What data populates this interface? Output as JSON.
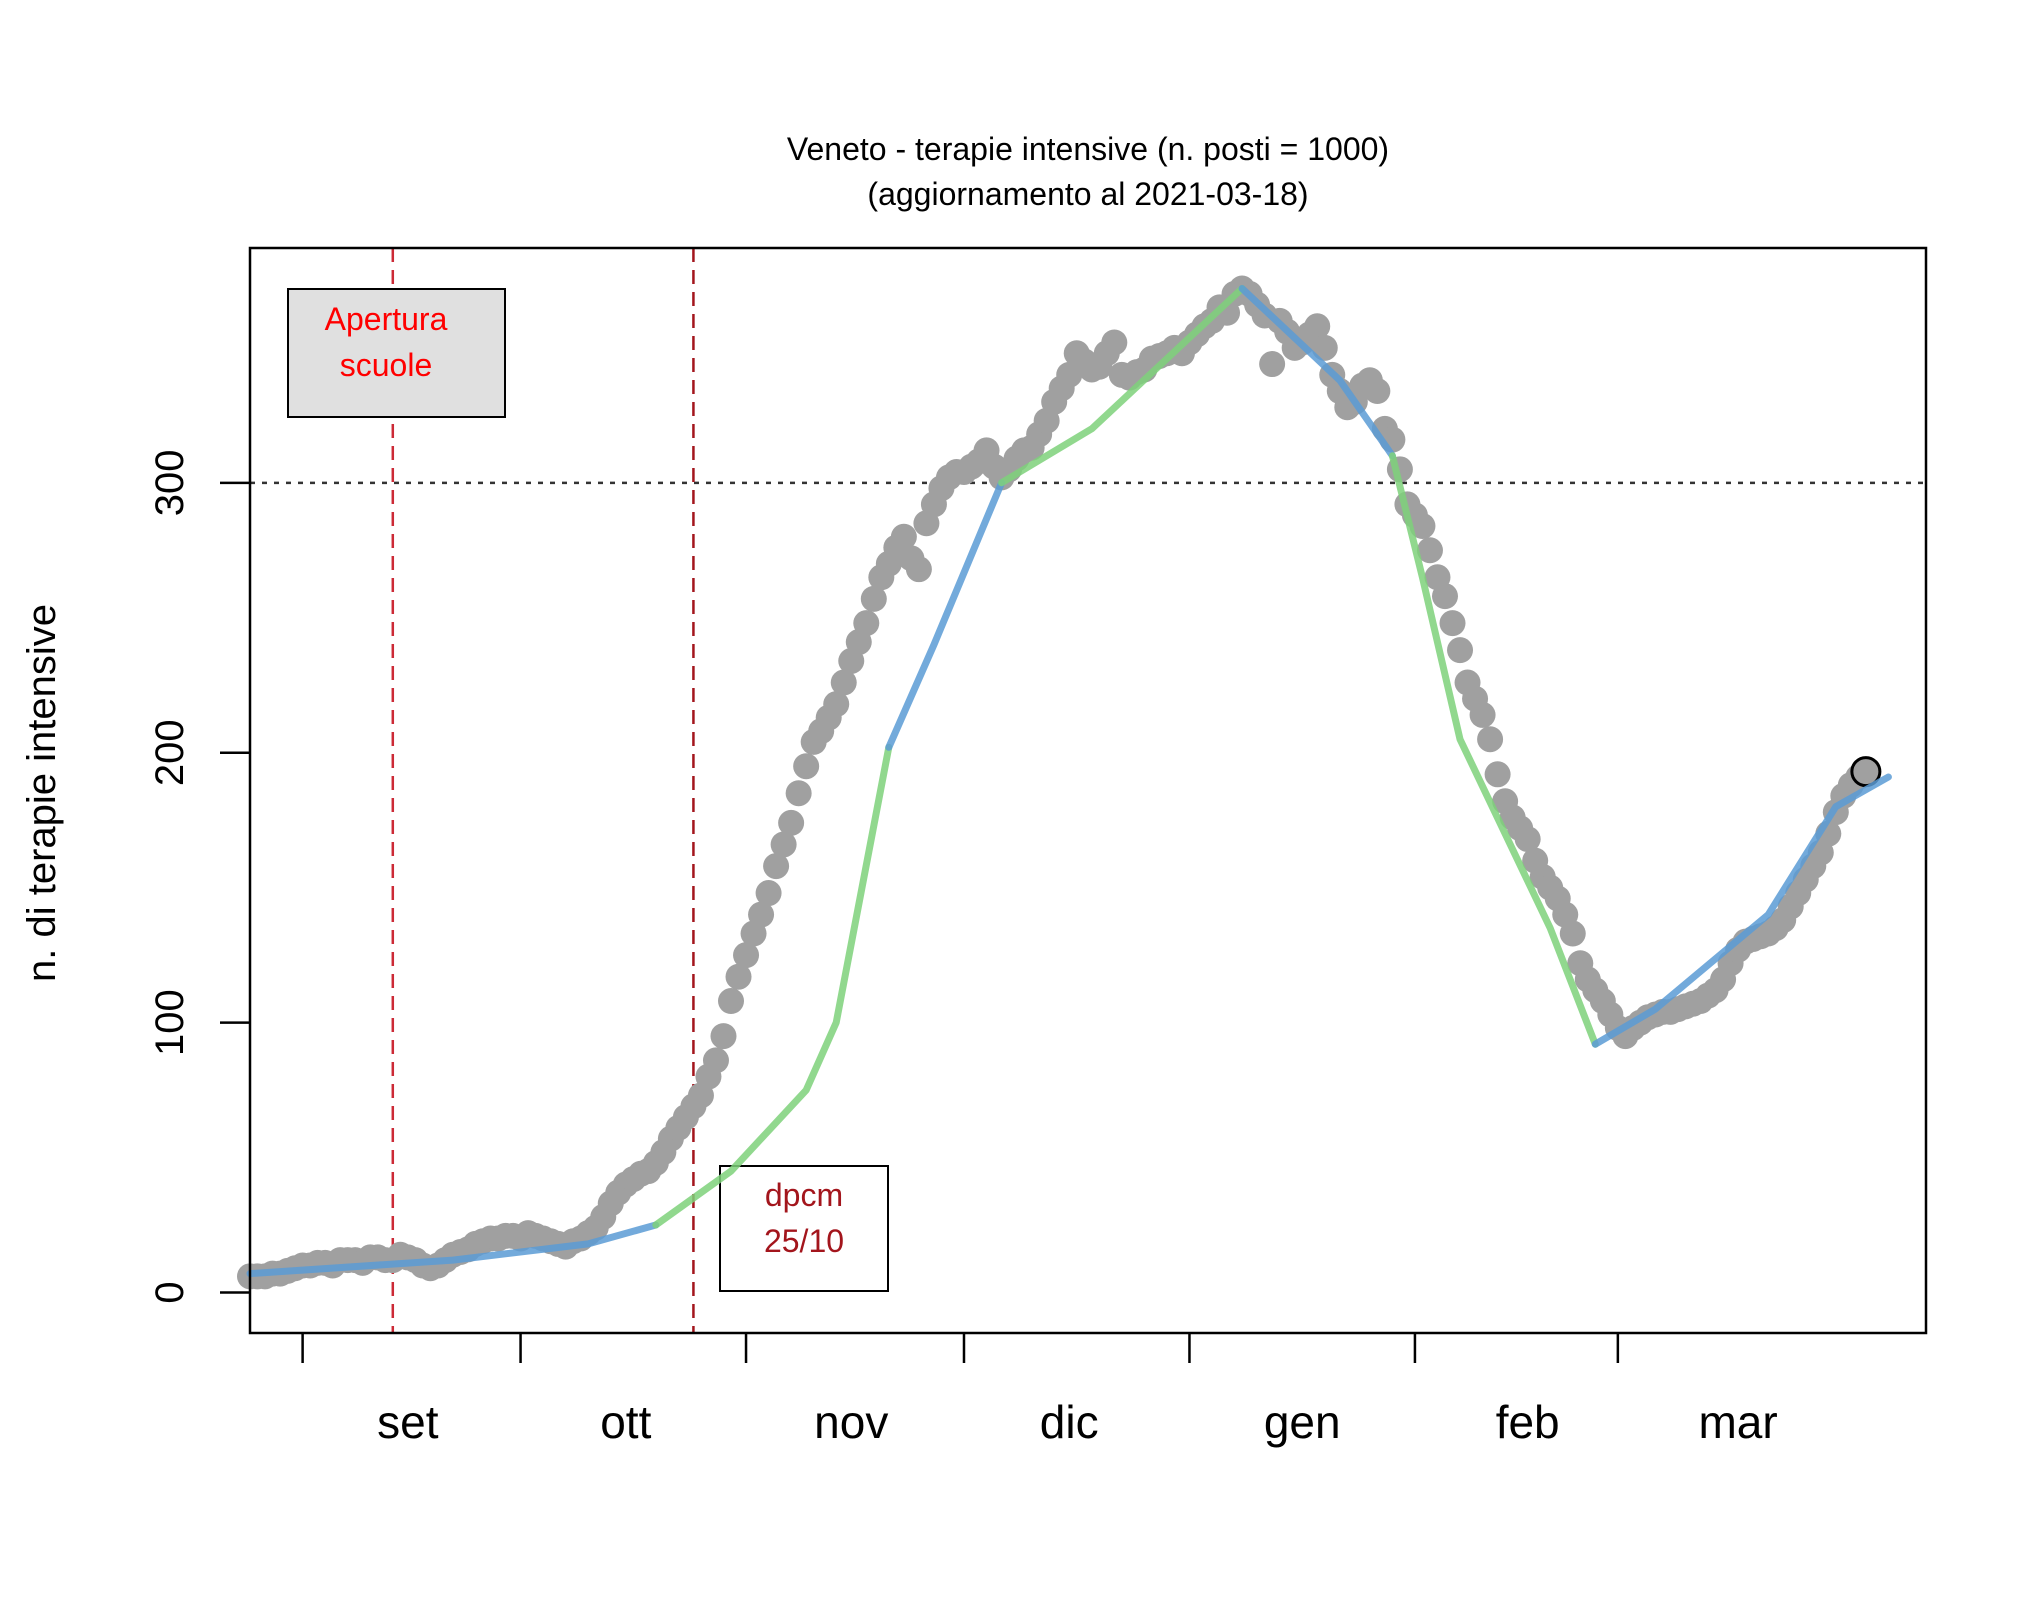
{
  "chart_data": {
    "type": "scatter",
    "title_line1": "Veneto - terapie intensive (n. posti = 1000)",
    "title_line2": "(aggiornamento al 2021-03-18)",
    "ylabel": "n. di terapie intensive",
    "xlabel": "",
    "xlim": [
      "2020-08-11",
      "2021-03-22"
    ],
    "ylim": [
      -15,
      387
    ],
    "yticks": [
      0,
      100,
      200,
      300
    ],
    "month_ticks": [
      "2020-08-18",
      "2020-09-16",
      "2020-10-16",
      "2020-11-14",
      "2020-12-14",
      "2021-01-13",
      "2021-02-09"
    ],
    "month_labels": [
      {
        "label": "set",
        "date": "2020-09-01"
      },
      {
        "label": "ott",
        "date": "2020-09-30"
      },
      {
        "label": "nov",
        "date": "2020-10-30"
      },
      {
        "label": "dic",
        "date": "2020-11-28"
      },
      {
        "label": "gen",
        "date": "2020-12-29"
      },
      {
        "label": "feb",
        "date": "2021-01-28"
      },
      {
        "label": "mar",
        "date": "2021-02-25"
      }
    ],
    "threshold_y": 300,
    "vlines": [
      {
        "date": "2020-08-30",
        "color": "#cc2a36"
      },
      {
        "date": "2020-10-09",
        "color": "#a3151c"
      }
    ],
    "annotations": [
      {
        "lines": [
          "Apertura",
          "scuole"
        ],
        "color": "#ff0000",
        "fill": "#e0e0e0"
      },
      {
        "lines": [
          "dpcm",
          "25/10"
        ],
        "color": "#a3151c",
        "fill": "#ffffff"
      }
    ],
    "points": {
      "color": "#a0a0a0",
      "start_date": "2020-08-11",
      "values": [
        6,
        6,
        6,
        7,
        7,
        8,
        9,
        10,
        10,
        11,
        11,
        10,
        12,
        12,
        12,
        11,
        13,
        13,
        12,
        12,
        14,
        13,
        12,
        10,
        9,
        10,
        12,
        14,
        15,
        16,
        18,
        19,
        20,
        20,
        21,
        21,
        20,
        22,
        21,
        20,
        19,
        18,
        17,
        19,
        20,
        22,
        24,
        28,
        33,
        37,
        40,
        42,
        44,
        45,
        48,
        52,
        57,
        61,
        65,
        69,
        73,
        80,
        86,
        95,
        108,
        117,
        125,
        133,
        140,
        148,
        158,
        166,
        174,
        185,
        195,
        204,
        208,
        213,
        218,
        226,
        234,
        241,
        248,
        257,
        265,
        270,
        276,
        280,
        272,
        268,
        285,
        292,
        298,
        302,
        304,
        304,
        306,
        308,
        312,
        306,
        302,
        305,
        309,
        312,
        313,
        318,
        323,
        330,
        335,
        340,
        348,
        345,
        342,
        343,
        348,
        352,
        340,
        339,
        341,
        342,
        346,
        347,
        348,
        350,
        348,
        352,
        355,
        358,
        360,
        365,
        363,
        370,
        372,
        370,
        366,
        362,
        344,
        360,
        356,
        350,
        352,
        355,
        358,
        350,
        340,
        334,
        328,
        330,
        336,
        338,
        334,
        320,
        316,
        305,
        292,
        288,
        284,
        275,
        265,
        258,
        248,
        238,
        226,
        220,
        214,
        205,
        192,
        182,
        176,
        172,
        168,
        160,
        154,
        150,
        146,
        140,
        133,
        122,
        116,
        112,
        108,
        103,
        98,
        95,
        98,
        100,
        102,
        103,
        104,
        104,
        105,
        106,
        107,
        108,
        110,
        112,
        116,
        122,
        127,
        130,
        131,
        132,
        133,
        135,
        138,
        143,
        148,
        153,
        158,
        163,
        170,
        178,
        184,
        188,
        191
      ],
      "last_value": 193
    },
    "segments": [
      {
        "color": "#5b9bd5",
        "points": [
          [
            "2020-08-11",
            7
          ],
          [
            "2020-09-07",
            12
          ],
          [
            "2020-09-25",
            18
          ],
          [
            "2020-10-04",
            25
          ]
        ]
      },
      {
        "color": "#7ed17a",
        "points": [
          [
            "2020-10-04",
            25
          ],
          [
            "2020-10-14",
            45
          ],
          [
            "2020-10-24",
            75
          ],
          [
            "2020-10-28",
            100
          ],
          [
            "2020-11-04",
            202
          ]
        ]
      },
      {
        "color": "#5b9bd5",
        "points": [
          [
            "2020-11-04",
            202
          ],
          [
            "2020-11-10",
            240
          ],
          [
            "2020-11-16",
            280
          ],
          [
            "2020-11-19",
            300
          ]
        ]
      },
      {
        "color": "#7ed17a",
        "points": [
          [
            "2020-11-19",
            300
          ],
          [
            "2020-12-01",
            320
          ],
          [
            "2020-12-21",
            372
          ]
        ]
      },
      {
        "color": "#5b9bd5",
        "points": [
          [
            "2020-12-21",
            372
          ],
          [
            "2021-01-03",
            338
          ],
          [
            "2021-01-10",
            310
          ]
        ]
      },
      {
        "color": "#7ed17a",
        "points": [
          [
            "2021-01-10",
            310
          ],
          [
            "2021-01-14",
            265
          ],
          [
            "2021-01-19",
            205
          ],
          [
            "2021-01-31",
            135
          ],
          [
            "2021-02-06",
            92
          ]
        ]
      },
      {
        "color": "#5b9bd5",
        "points": [
          [
            "2021-02-06",
            92
          ],
          [
            "2021-02-14",
            105
          ],
          [
            "2021-03-01",
            140
          ],
          [
            "2021-03-10",
            180
          ],
          [
            "2021-03-17",
            191
          ]
        ]
      }
    ]
  }
}
